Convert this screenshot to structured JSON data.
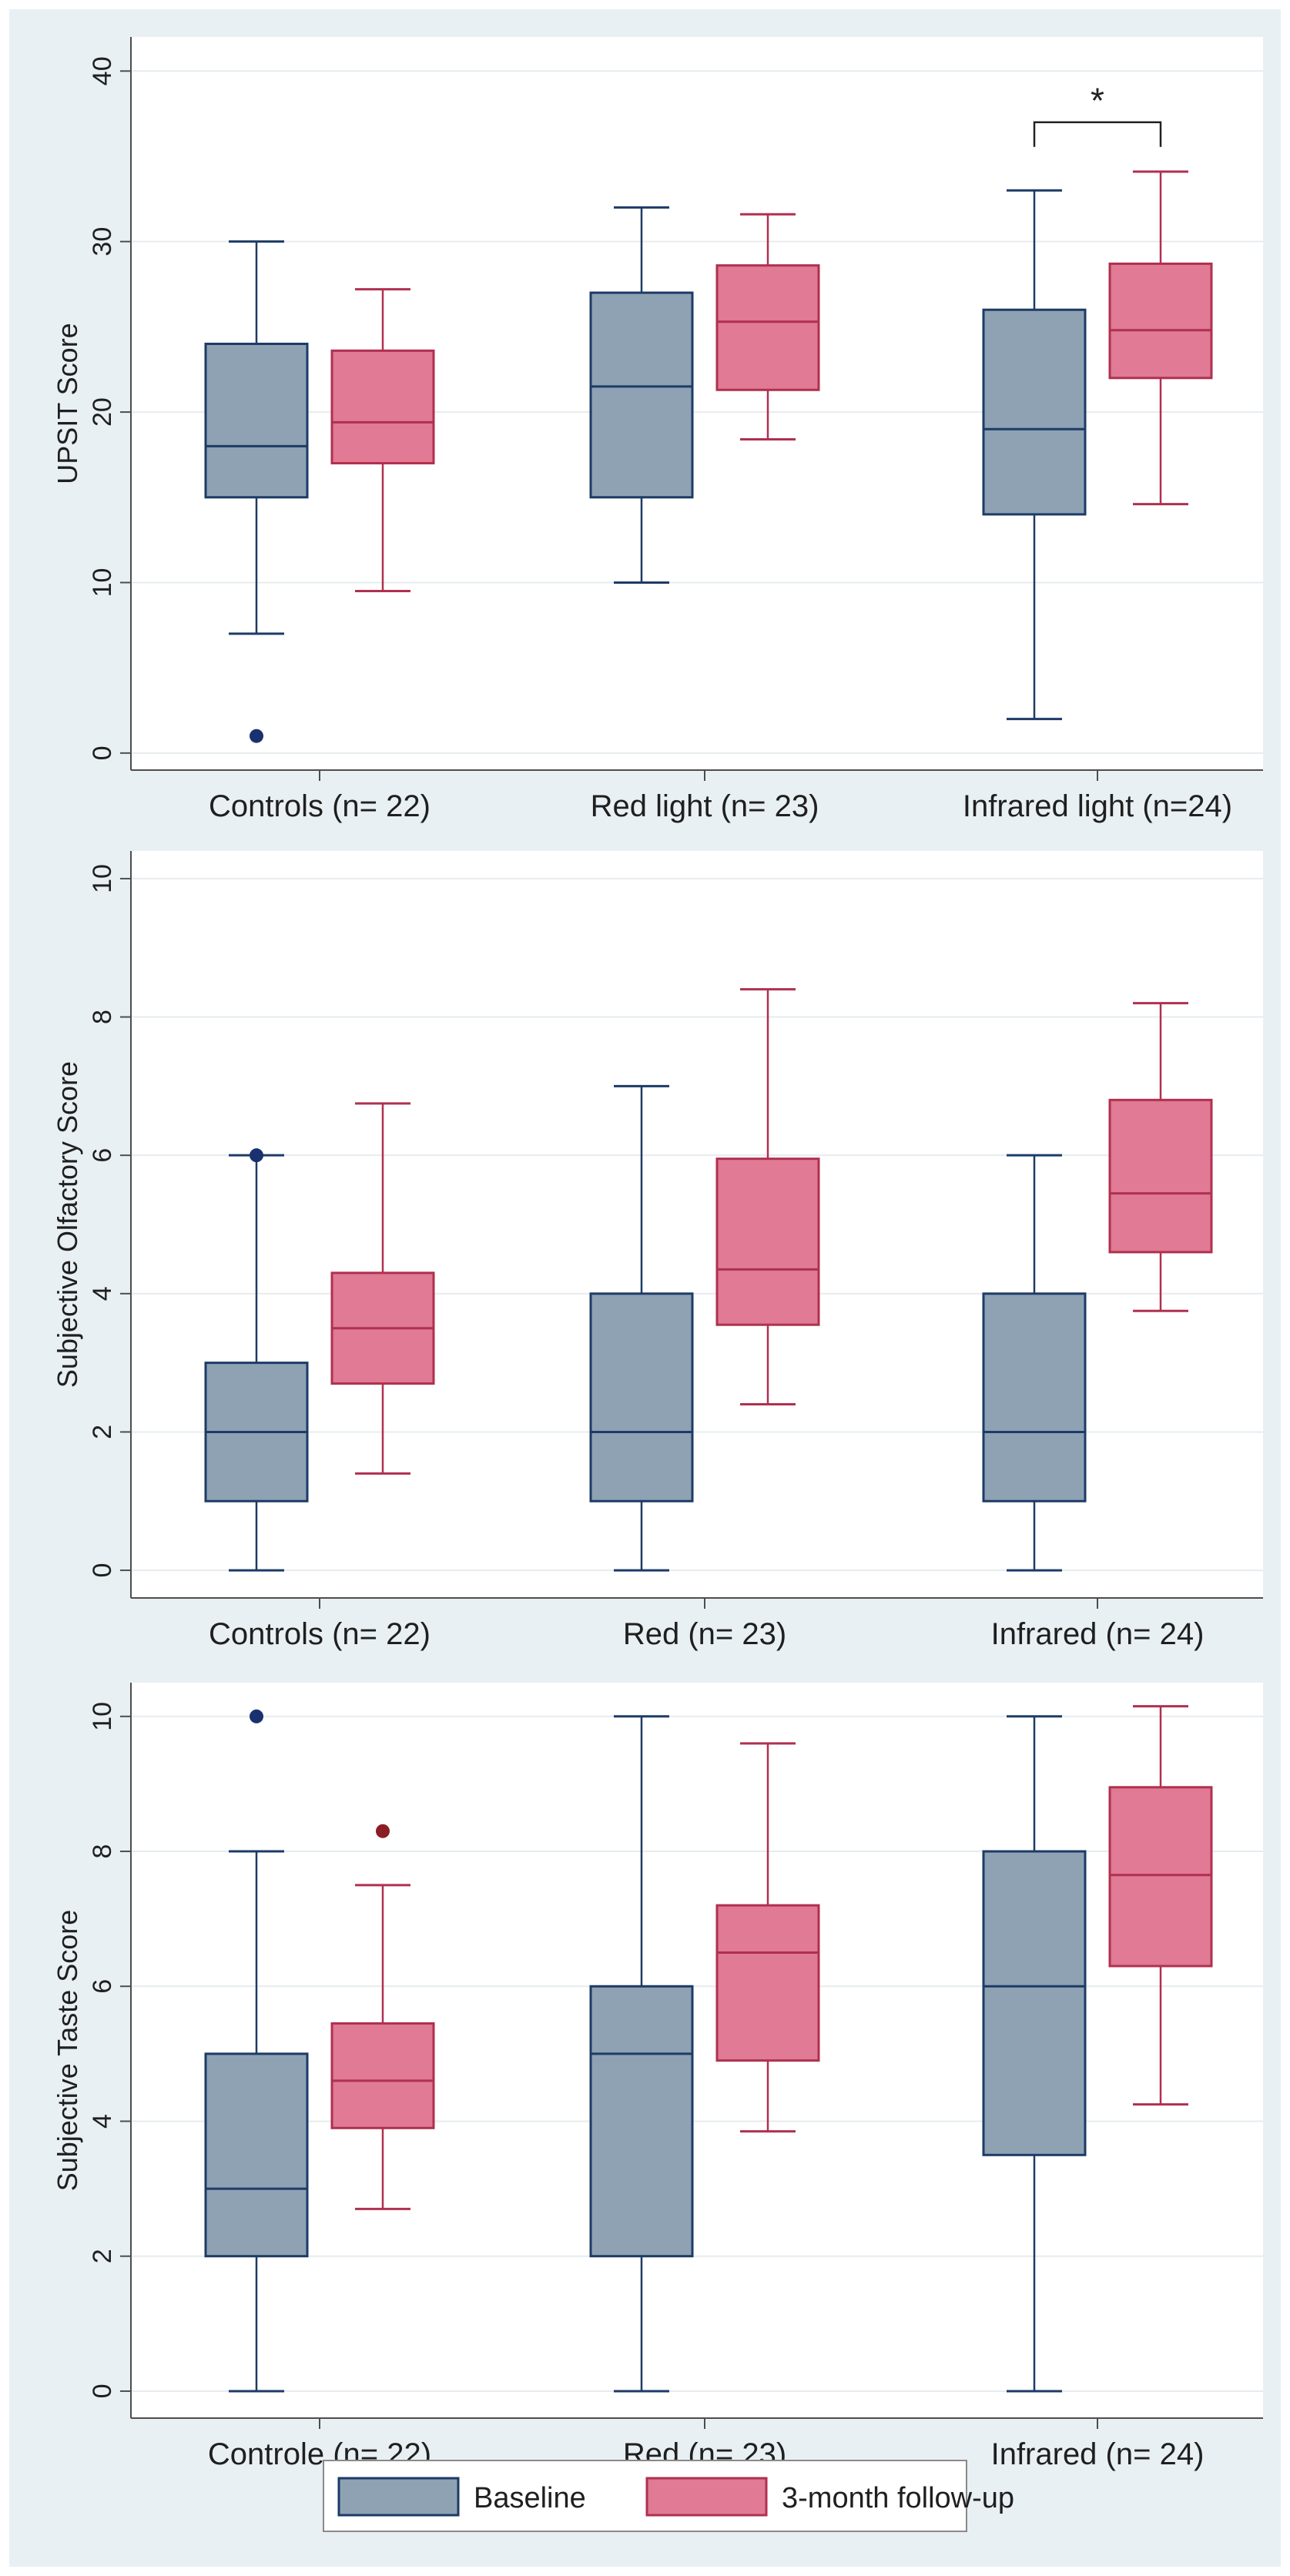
{
  "colors": {
    "outer_bg": "#e9f0f4",
    "plot_bg": "#ffffff",
    "gridline": "#e6ecef",
    "axis": "#4d4d4d",
    "baseline_fill": "#8ea2b4",
    "baseline_stroke": "#1d3b66",
    "followup_fill": "#e07a95",
    "followup_stroke": "#b0304f",
    "baseline_outlier": "#1a3170",
    "followup_outlier": "#8a1e24"
  },
  "legend": {
    "items": [
      {
        "label": "Baseline",
        "series": "baseline"
      },
      {
        "label": "3-month follow-up",
        "series": "followup"
      }
    ]
  },
  "chart_data": [
    {
      "type": "boxplot",
      "id": "upsit",
      "ylabel": "UPSIT Score",
      "ylim": [
        -1,
        42
      ],
      "yticks": [
        0,
        10,
        20,
        30,
        40
      ],
      "grid": true,
      "categories": [
        "Controls (n= 22)",
        "Red light (n= 23)",
        "Infrared light (n=24)"
      ],
      "series": [
        {
          "name": "Baseline",
          "key": "baseline",
          "boxes": [
            {
              "whisker_low": 7,
              "q1": 15,
              "median": 18,
              "q3": 24,
              "whisker_high": 30,
              "outliers": [
                1
              ]
            },
            {
              "whisker_low": 10,
              "q1": 15,
              "median": 21.5,
              "q3": 27,
              "whisker_high": 32,
              "outliers": []
            },
            {
              "whisker_low": 2,
              "q1": 14,
              "median": 19,
              "q3": 26,
              "whisker_high": 33,
              "outliers": []
            }
          ]
        },
        {
          "name": "3-month follow-up",
          "key": "followup",
          "boxes": [
            {
              "whisker_low": 9.5,
              "q1": 17,
              "median": 19.4,
              "q3": 23.6,
              "whisker_high": 27.2,
              "outliers": []
            },
            {
              "whisker_low": 18.4,
              "q1": 21.3,
              "median": 25.3,
              "q3": 28.6,
              "whisker_high": 31.6,
              "outliers": []
            },
            {
              "whisker_low": 14.6,
              "q1": 22,
              "median": 24.8,
              "q3": 28.7,
              "whisker_high": 34.1,
              "outliers": []
            }
          ]
        }
      ],
      "annotations": [
        {
          "text": "*",
          "category_index": 2,
          "from_series": "baseline",
          "to_series": "followup",
          "y": 37
        }
      ]
    },
    {
      "type": "boxplot",
      "id": "olfactory",
      "ylabel": "Subjective Olfactory Score",
      "ylim": [
        -0.4,
        10.4
      ],
      "yticks": [
        0,
        2,
        4,
        6,
        8,
        10
      ],
      "grid": true,
      "categories": [
        "Controls (n= 22)",
        "Red (n= 23)",
        "Infrared (n= 24)"
      ],
      "series": [
        {
          "name": "Baseline",
          "key": "baseline",
          "boxes": [
            {
              "whisker_low": 0,
              "q1": 1,
              "median": 2,
              "q3": 3,
              "whisker_high": 6,
              "outliers": [
                6
              ]
            },
            {
              "whisker_low": 0,
              "q1": 1,
              "median": 2,
              "q3": 4,
              "whisker_high": 7,
              "outliers": []
            },
            {
              "whisker_low": 0,
              "q1": 1,
              "median": 2,
              "q3": 4,
              "whisker_high": 6,
              "outliers": []
            }
          ]
        },
        {
          "name": "3-month follow-up",
          "key": "followup",
          "boxes": [
            {
              "whisker_low": 1.4,
              "q1": 2.7,
              "median": 3.5,
              "q3": 4.3,
              "whisker_high": 6.75,
              "outliers": []
            },
            {
              "whisker_low": 2.4,
              "q1": 3.55,
              "median": 4.35,
              "q3": 5.95,
              "whisker_high": 8.4,
              "outliers": []
            },
            {
              "whisker_low": 3.75,
              "q1": 4.6,
              "median": 5.45,
              "q3": 6.8,
              "whisker_high": 8.2,
              "outliers": []
            }
          ]
        }
      ],
      "annotations": []
    },
    {
      "type": "boxplot",
      "id": "taste",
      "ylabel": "Subjective Taste Score",
      "ylim": [
        -0.4,
        10.5
      ],
      "yticks": [
        0,
        2,
        4,
        6,
        8,
        10
      ],
      "grid": true,
      "categories": [
        "Controle (n= 22)",
        "Red (n= 23)",
        "Infrared (n= 24)"
      ],
      "series": [
        {
          "name": "Baseline",
          "key": "baseline",
          "boxes": [
            {
              "whisker_low": 0,
              "q1": 2,
              "median": 3,
              "q3": 5,
              "whisker_high": 8,
              "outliers": [
                10
              ]
            },
            {
              "whisker_low": 0,
              "q1": 2,
              "median": 5,
              "q3": 6,
              "whisker_high": 10,
              "outliers": []
            },
            {
              "whisker_low": 0,
              "q1": 3.5,
              "median": 6,
              "q3": 8,
              "whisker_high": 10,
              "outliers": []
            }
          ]
        },
        {
          "name": "3-month follow-up",
          "key": "followup",
          "boxes": [
            {
              "whisker_low": 2.7,
              "q1": 3.9,
              "median": 4.6,
              "q3": 5.45,
              "whisker_high": 7.5,
              "outliers": [
                8.3
              ]
            },
            {
              "whisker_low": 3.85,
              "q1": 4.9,
              "median": 6.5,
              "q3": 7.2,
              "whisker_high": 9.6,
              "outliers": []
            },
            {
              "whisker_low": 4.25,
              "q1": 6.3,
              "median": 7.65,
              "q3": 8.95,
              "whisker_high": 10.15,
              "outliers": []
            }
          ]
        }
      ],
      "annotations": []
    }
  ]
}
